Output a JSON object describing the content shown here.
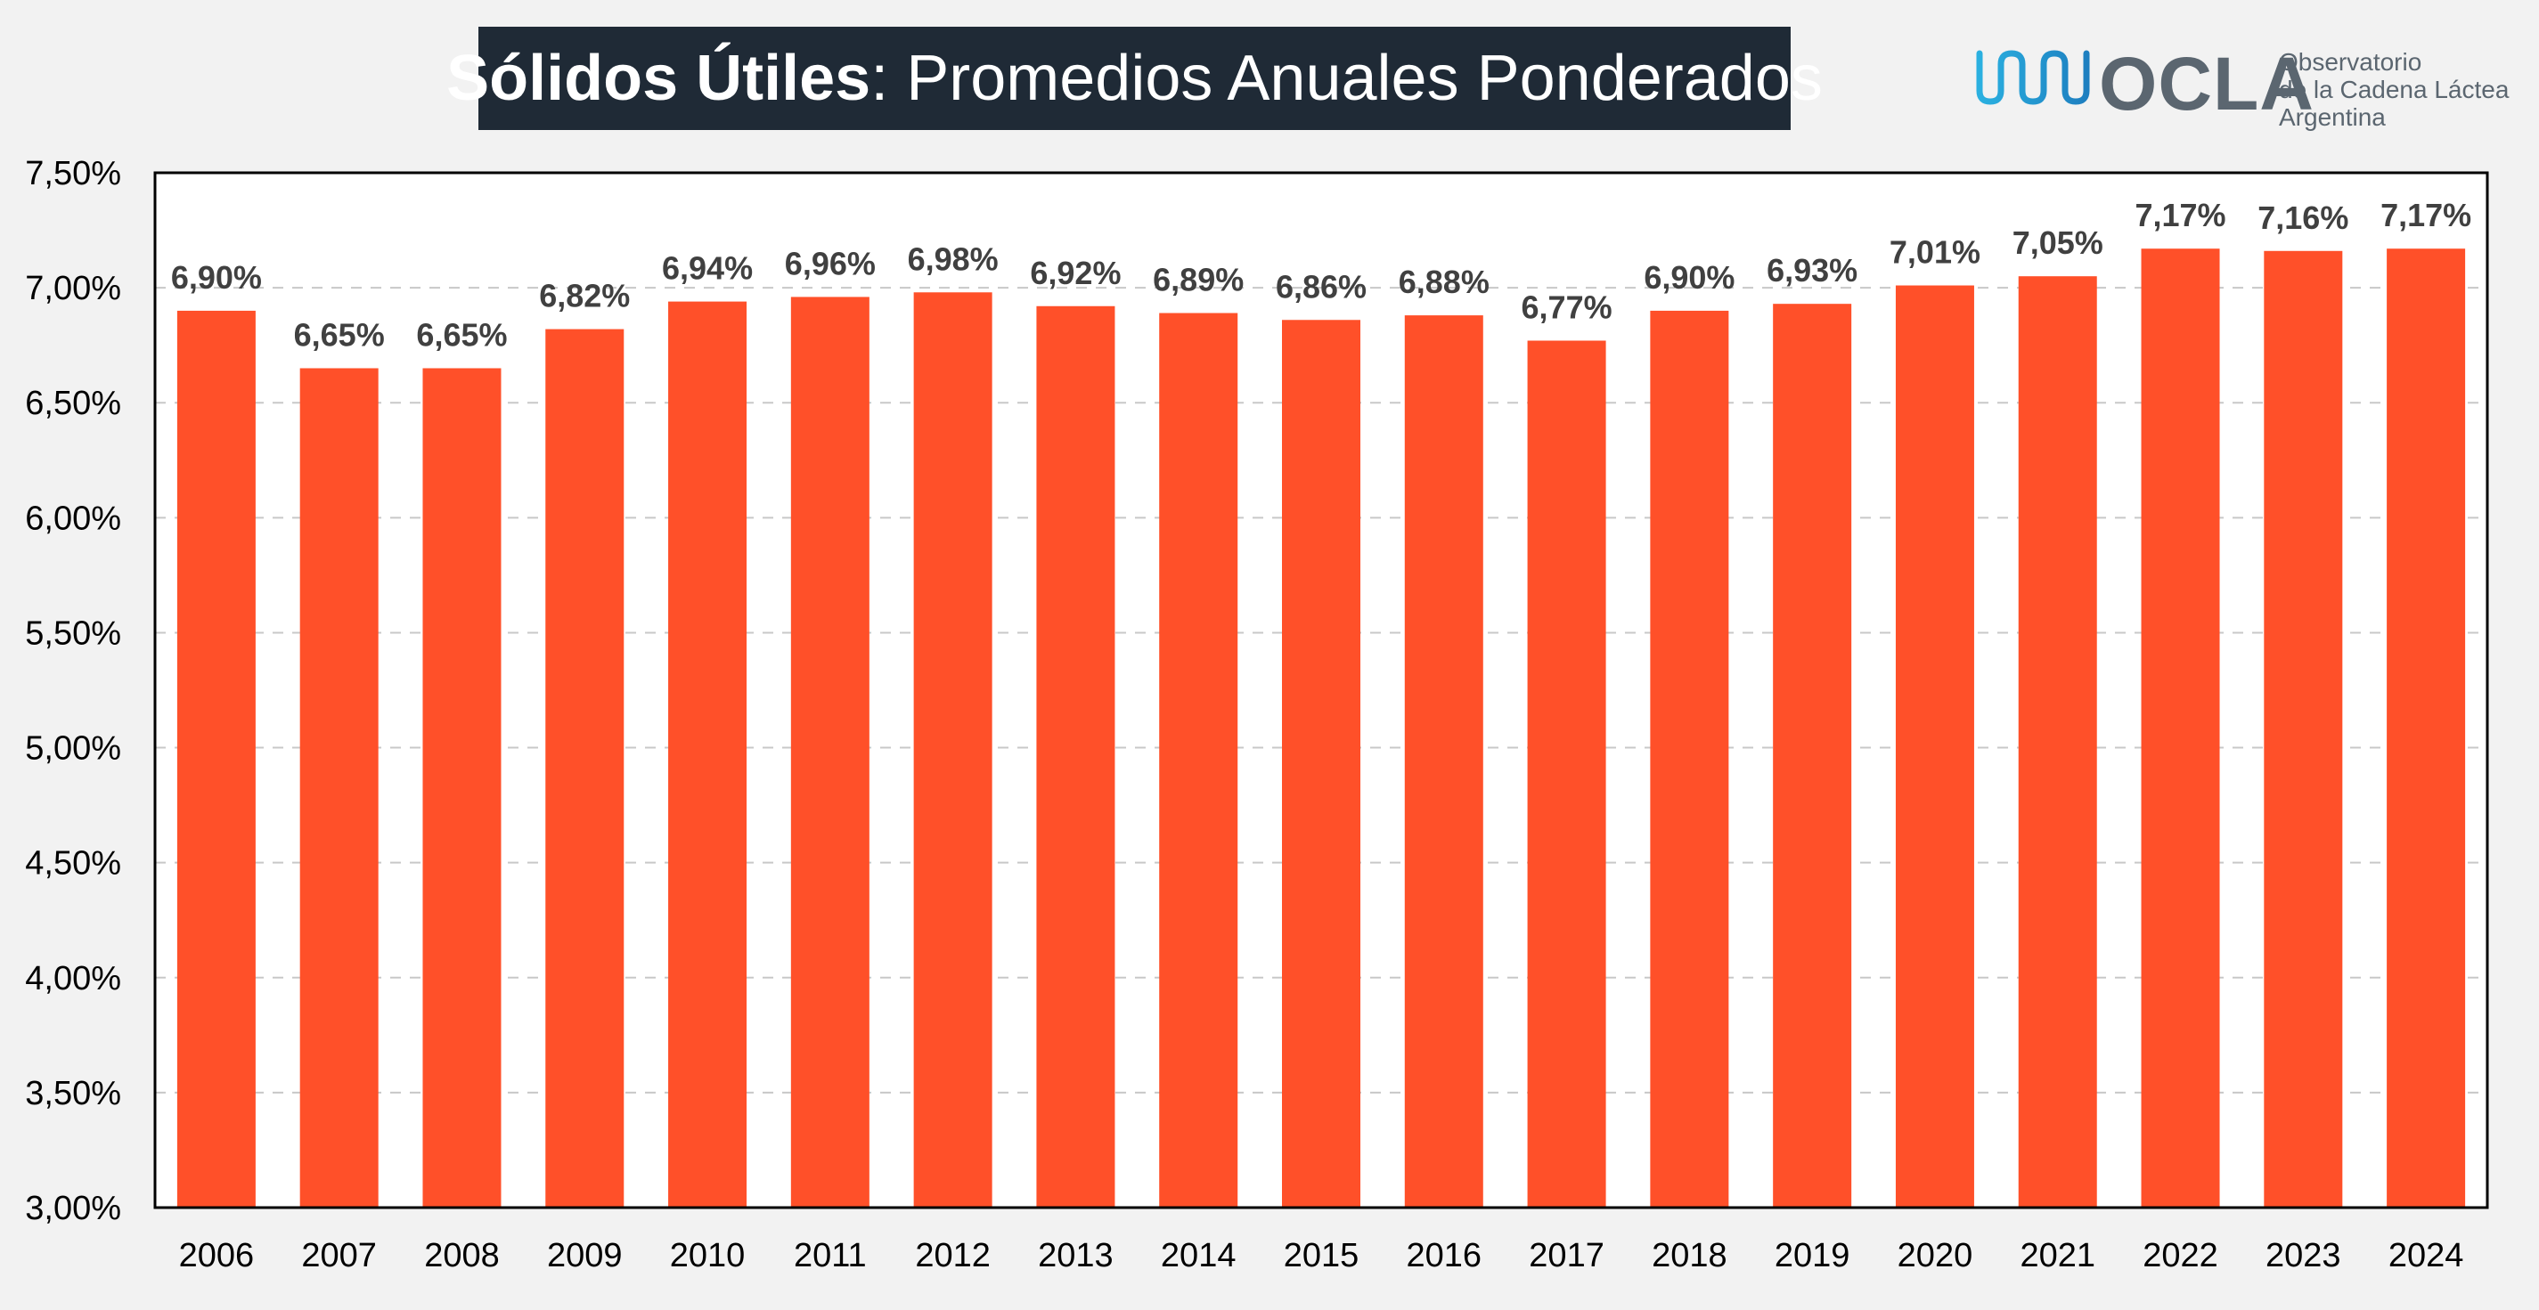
{
  "title": {
    "bold": "Sólidos Útiles",
    "regular": ": Promedios Anuales Ponderados"
  },
  "logo": {
    "icon": "wave-icon",
    "name": "OCLA",
    "line1": "Observatorio",
    "line2": "de la Cadena Láctea",
    "line3": "Argentina",
    "colors": [
      "#2ab0e0",
      "#1e7fc0",
      "#5b6670"
    ]
  },
  "chart_data": {
    "type": "bar",
    "categories": [
      "2006",
      "2007",
      "2008",
      "2009",
      "2010",
      "2011",
      "2012",
      "2013",
      "2014",
      "2015",
      "2016",
      "2017",
      "2018",
      "2019",
      "2020",
      "2021",
      "2022",
      "2023",
      "2024"
    ],
    "values": [
      6.9,
      6.65,
      6.65,
      6.82,
      6.94,
      6.96,
      6.98,
      6.92,
      6.89,
      6.86,
      6.88,
      6.77,
      6.9,
      6.93,
      7.01,
      7.05,
      7.17,
      7.16,
      7.17
    ],
    "data_labels": [
      "6,90%",
      "6,65%",
      "6,65%",
      "6,82%",
      "6,94%",
      "6,96%",
      "6,98%",
      "6,92%",
      "6,89%",
      "6,86%",
      "6,88%",
      "6,77%",
      "6,90%",
      "6,93%",
      "7,01%",
      "7,05%",
      "7,17%",
      "7,16%",
      "7,17%"
    ],
    "ylim": [
      3.0,
      7.5
    ],
    "yticks": [
      3.0,
      3.5,
      4.0,
      4.5,
      5.0,
      5.5,
      6.0,
      6.5,
      7.0,
      7.5
    ],
    "ytick_labels": [
      "3,00%",
      "3,50%",
      "4,00%",
      "4,50%",
      "5,00%",
      "5,50%",
      "6,00%",
      "6,50%",
      "7,00%",
      "7,50%"
    ],
    "grid": "horizontal dashed",
    "bar_color": "#ff5029",
    "label_color": "#404040",
    "xlabel": "",
    "ylabel": ""
  }
}
